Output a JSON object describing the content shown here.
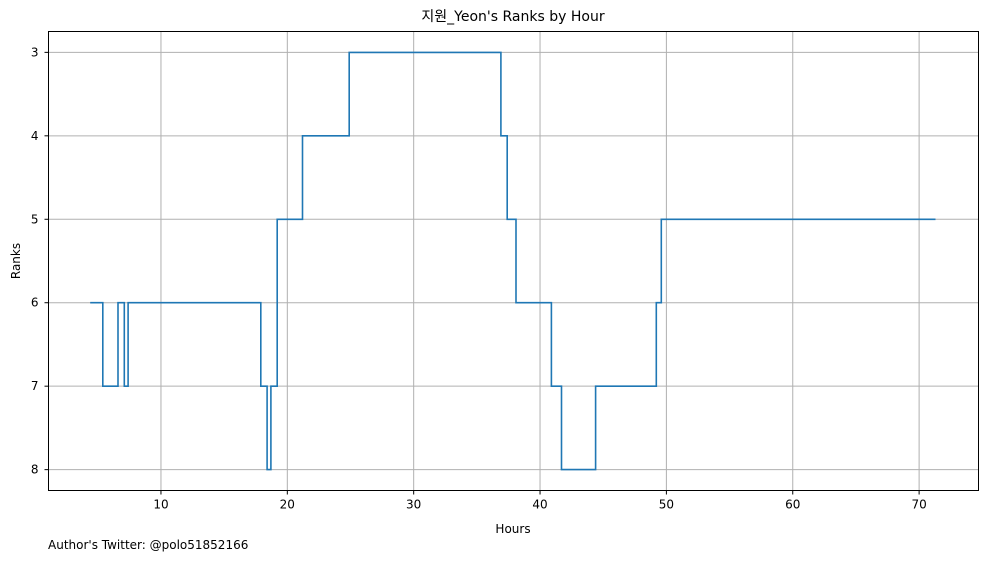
{
  "chart_data": {
    "type": "line",
    "step": true,
    "title": "지원_Yeon's Ranks by Hour",
    "xlabel": "Hours",
    "ylabel": "Ranks",
    "xlim": [
      1.1,
      74.7
    ],
    "ylim": [
      8.25,
      2.75
    ],
    "y_inverted": true,
    "xticks": [
      10,
      20,
      30,
      40,
      50,
      60,
      70
    ],
    "yticks": [
      3,
      4,
      5,
      6,
      7,
      8
    ],
    "grid": true,
    "series": [
      {
        "color": "#1f77b4",
        "x": [
          4.4,
          5.4,
          6.6,
          7.1,
          7.4,
          17.9,
          18.4,
          18.7,
          19.2,
          21.2,
          24.9,
          36.9,
          37.4,
          38.1,
          40.9,
          41.7,
          44.4,
          49.2,
          49.6,
          71.3
        ],
        "y": [
          6,
          7,
          6,
          7,
          6,
          7,
          8,
          7,
          5,
          4,
          3,
          4,
          5,
          6,
          7,
          8,
          7,
          6,
          5,
          5
        ]
      }
    ]
  },
  "footer": "Author's Twitter: @polo51852166"
}
